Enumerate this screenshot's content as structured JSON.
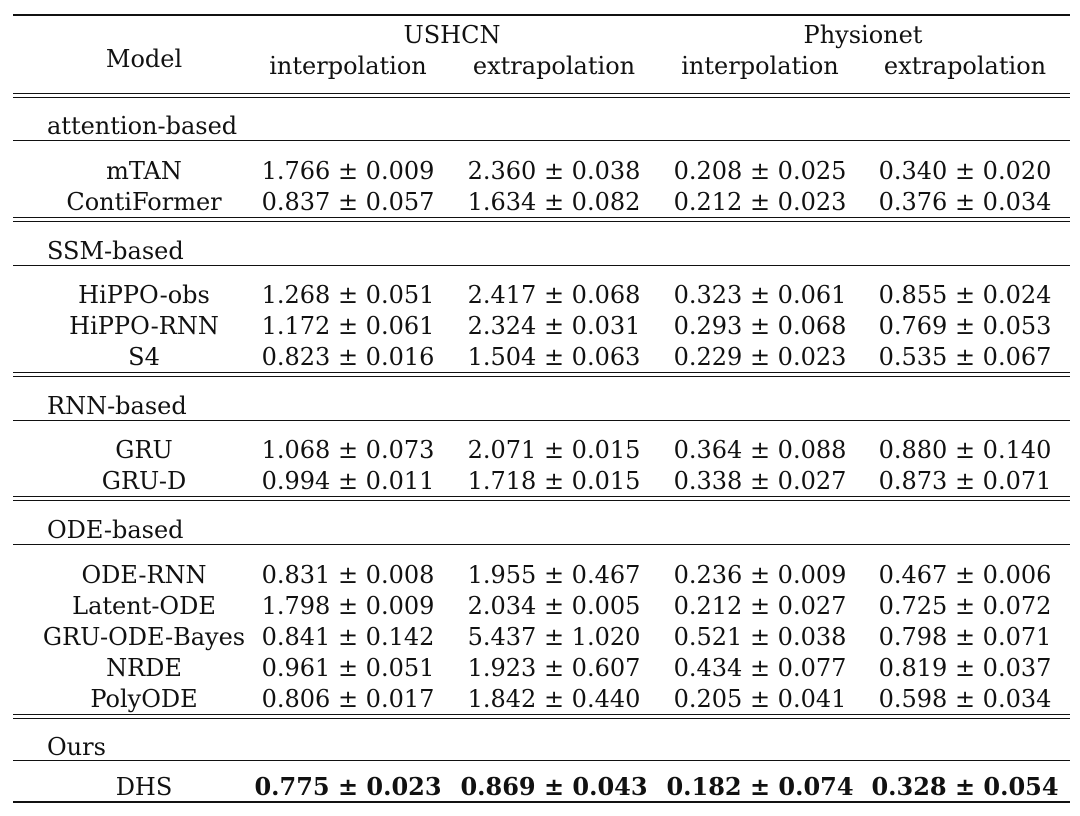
{
  "header": {
    "model": "Model",
    "groups": [
      "USHCN",
      "Physionet"
    ],
    "subcols": [
      "interpolation",
      "extrapolation",
      "interpolation",
      "extrapolation"
    ]
  },
  "sections": [
    {
      "name": "attention-based",
      "rows": [
        {
          "model": "mTAN",
          "values": [
            "1.766 ± 0.009",
            "2.360 ± 0.038",
            "0.208 ± 0.025",
            "0.340 ± 0.020"
          ]
        },
        {
          "model": "ContiFormer",
          "values": [
            "0.837 ± 0.057",
            "1.634 ± 0.082",
            "0.212 ± 0.023",
            "0.376 ± 0.034"
          ]
        }
      ]
    },
    {
      "name": "SSM-based",
      "rows": [
        {
          "model": "HiPPO-obs",
          "values": [
            "1.268 ± 0.051",
            "2.417 ± 0.068",
            "0.323 ± 0.061",
            "0.855 ± 0.024"
          ]
        },
        {
          "model": "HiPPO-RNN",
          "values": [
            "1.172 ± 0.061",
            "2.324 ± 0.031",
            "0.293 ± 0.068",
            "0.769 ± 0.053"
          ]
        },
        {
          "model": "S4",
          "values": [
            "0.823 ± 0.016",
            "1.504 ± 0.063",
            "0.229 ± 0.023",
            "0.535 ± 0.067"
          ]
        }
      ]
    },
    {
      "name": "RNN-based",
      "rows": [
        {
          "model": "GRU",
          "values": [
            "1.068 ± 0.073",
            "2.071 ± 0.015",
            "0.364 ± 0.088",
            "0.880 ± 0.140"
          ]
        },
        {
          "model": "GRU-D",
          "values": [
            "0.994 ± 0.011",
            "1.718 ± 0.015",
            "0.338 ± 0.027",
            "0.873 ± 0.071"
          ]
        }
      ]
    },
    {
      "name": "ODE-based",
      "rows": [
        {
          "model": "ODE-RNN",
          "values": [
            "0.831 ± 0.008",
            "1.955 ± 0.467",
            "0.236 ± 0.009",
            "0.467 ± 0.006"
          ]
        },
        {
          "model": "Latent-ODE",
          "values": [
            "1.798 ± 0.009",
            "2.034 ± 0.005",
            "0.212 ± 0.027",
            "0.725 ± 0.072"
          ]
        },
        {
          "model": "GRU-ODE-Bayes",
          "values": [
            "0.841 ± 0.142",
            "5.437 ± 1.020",
            "0.521 ± 0.038",
            "0.798 ± 0.071"
          ]
        },
        {
          "model": "NRDE",
          "values": [
            "0.961 ± 0.051",
            "1.923 ± 0.607",
            "0.434 ± 0.077",
            "0.819 ± 0.037"
          ]
        },
        {
          "model": "PolyODE",
          "values": [
            "0.806 ± 0.017",
            "1.842 ± 0.440",
            "0.205 ± 0.041",
            "0.598 ± 0.034"
          ]
        }
      ]
    },
    {
      "name": "Ours",
      "rows": [
        {
          "model": "DHS",
          "values": [
            "0.775 ± 0.023",
            "0.869 ± 0.043",
            "0.182 ± 0.074",
            "0.328 ± 0.054"
          ],
          "bold": true
        }
      ]
    }
  ]
}
